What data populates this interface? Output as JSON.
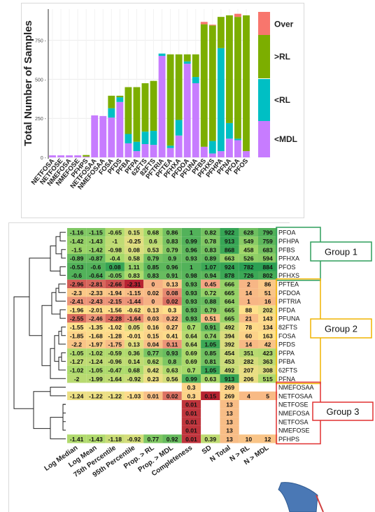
{
  "chart_data": [
    {
      "type": "bar",
      "stacked": true,
      "title": "",
      "ylabel": "Total Number of Samples",
      "xlabel": "",
      "ylim": [
        0,
        950
      ],
      "yticks": [
        0,
        250,
        500,
        750
      ],
      "ytick_labels": [
        "0 -",
        "250 -",
        "500 -",
        "750 -"
      ],
      "grid": true,
      "legend": "right",
      "categories": [
        "NETFOSA",
        "NETFOSE",
        "NMEFOSA",
        "NMEFOSE",
        "PFHPS",
        "NETFOSAA",
        "NMEFOSAA",
        "FOSA",
        "PFDS",
        "PFBA",
        "PFPA",
        "62FTS",
        "82FTS",
        "PFTRIA",
        "PFTEA",
        "PFHXA",
        "PFDOA",
        "PFUNA",
        "PFBS",
        "PFHXS",
        "PFHPA",
        "PFNA",
        "PFOA",
        "PFOS"
      ],
      "series": [
        {
          "name": "<MDL",
          "color": "#c77cff",
          "values": [
            13,
            13,
            13,
            13,
            5,
            269,
            265,
            255,
            355,
            90,
            40,
            85,
            80,
            650,
            60,
            140,
            600,
            475,
            68,
            25,
            40,
            120,
            110,
            40
          ]
        },
        {
          "name": "<RL",
          "color": "#00bfc4",
          "values": [
            0,
            0,
            0,
            0,
            0,
            0,
            0,
            60,
            30,
            60,
            60,
            80,
            90,
            15,
            15,
            100,
            15,
            40,
            0,
            80,
            660,
            100,
            10,
            0
          ]
        },
        {
          "name": ">RL",
          "color": "#7cae00",
          "values": [
            0,
            0,
            0,
            0,
            10,
            0,
            0,
            80,
            10,
            300,
            350,
            310,
            320,
            0,
            585,
            420,
            45,
            145,
            785,
            740,
            200,
            690,
            780,
            870
          ]
        },
        {
          "name": "Over",
          "color": "#f8766d",
          "values": [
            0,
            0,
            0,
            0,
            0,
            0,
            0,
            0,
            0,
            0,
            0,
            0,
            0,
            0,
            0,
            0,
            0,
            0,
            15,
            5,
            0,
            0,
            20,
            0
          ]
        }
      ]
    },
    {
      "type": "heatmap",
      "title": "",
      "columns": [
        "Log Median",
        "Log Mean",
        "75th Percentile",
        "95th Percentile",
        "Prop. > RL",
        "Prop. > MDL",
        "Completeness",
        "SD",
        "N Total",
        "N > RL",
        "N > MDL"
      ],
      "rows": [
        {
          "name": "PFOA",
          "values": [
            "-1.16",
            "-1.15",
            "-0.65",
            "0.15",
            "0.68",
            "0.86",
            "1",
            "0.82",
            "922",
            "628",
            "790"
          ],
          "shade": [
            0.82,
            0.82,
            0.72,
            0.62,
            0.75,
            0.84,
            0.9,
            0.84,
            0.95,
            0.85,
            0.9
          ]
        },
        {
          "name": "PFHPA",
          "values": [
            "-1.42",
            "-1.43",
            "-1",
            "-0.25",
            "0.6",
            "0.83",
            "0.99",
            "0.78",
            "913",
            "549",
            "759"
          ],
          "shade": [
            0.78,
            0.78,
            0.68,
            0.58,
            0.7,
            0.83,
            0.9,
            0.82,
            0.95,
            0.8,
            0.88
          ]
        },
        {
          "name": "PFBS",
          "values": [
            "-1.5",
            "-1.42",
            "-0.98",
            "0.08",
            "0.53",
            "0.79",
            "0.96",
            "0.83",
            "868",
            "458",
            "683"
          ],
          "shade": [
            0.77,
            0.78,
            0.68,
            0.6,
            0.66,
            0.81,
            0.88,
            0.84,
            0.94,
            0.76,
            0.84
          ]
        },
        {
          "name": "PFHXA",
          "values": [
            "-0.89",
            "-0.87",
            "-0.4",
            "0.58",
            "0.79",
            "0.9",
            "0.93",
            "0.89",
            "663",
            "526",
            "594"
          ],
          "shade": [
            0.86,
            0.86,
            0.75,
            0.67,
            0.84,
            0.86,
            0.87,
            0.87,
            0.78,
            0.79,
            0.8
          ]
        },
        {
          "name": "PFOS",
          "values": [
            "-0.53",
            "-0.6",
            "0.08",
            "1.11",
            "0.85",
            "0.96",
            "1",
            "1.07",
            "924",
            "782",
            "884"
          ],
          "shade": [
            0.9,
            0.9,
            0.95,
            0.78,
            0.88,
            0.88,
            0.9,
            0.94,
            0.95,
            0.97,
            0.97
          ]
        },
        {
          "name": "PFHXS",
          "values": [
            "-0.6",
            "-0.64",
            "-0.05",
            "0.83",
            "0.83",
            "0.91",
            "0.98",
            "0.94",
            "878",
            "726",
            "802"
          ],
          "shade": [
            0.9,
            0.9,
            0.82,
            0.73,
            0.86,
            0.86,
            0.89,
            0.88,
            0.94,
            0.94,
            0.92
          ]
        },
        {
          "name": "PFTEA",
          "values": [
            "-2.96",
            "-2.81",
            "-2.66",
            "-2.31",
            "0",
            "0.13",
            "0.93",
            "0.45",
            "666",
            "2",
            "86"
          ],
          "shade": [
            0.12,
            0.14,
            0.1,
            0.02,
            0.3,
            0.38,
            0.87,
            0.25,
            0.78,
            0.32,
            0.4
          ]
        },
        {
          "name": "PFDOA",
          "values": [
            "-2.3",
            "-2.33",
            "-1.94",
            "-1.15",
            "0.02",
            "0.08",
            "0.93",
            "0.72",
            "665",
            "14",
            "51"
          ],
          "shade": [
            0.4,
            0.4,
            0.38,
            0.35,
            0.34,
            0.2,
            0.87,
            0.78,
            0.78,
            0.34,
            0.38
          ]
        },
        {
          "name": "PFTRIA",
          "values": [
            "-2.41",
            "-2.43",
            "-2.15",
            "-1.44",
            "0",
            "0.02",
            "0.93",
            "0.88",
            "664",
            "1",
            "16"
          ],
          "shade": [
            0.22,
            0.22,
            0.22,
            0.22,
            0.3,
            0.16,
            0.87,
            0.86,
            0.78,
            0.32,
            0.34
          ]
        },
        {
          "name": "PFDA",
          "values": [
            "-1.96",
            "-2.01",
            "-1.56",
            "-0.62",
            "0.13",
            "0.3",
            "0.93",
            "0.79",
            "665",
            "88",
            "202"
          ],
          "shade": [
            0.5,
            0.48,
            0.48,
            0.52,
            0.45,
            0.5,
            0.87,
            0.82,
            0.78,
            0.5,
            0.55
          ]
        },
        {
          "name": "PFUNA",
          "values": [
            "-2.55",
            "-2.46",
            "-2.28",
            "-1.64",
            "0.03",
            "0.22",
            "0.93",
            "0.51",
            "665",
            "21",
            "143"
          ],
          "shade": [
            0.15,
            0.22,
            0.15,
            0.2,
            0.35,
            0.3,
            0.87,
            0.35,
            0.78,
            0.35,
            0.48
          ]
        },
        {
          "name": "82FTS",
          "values": [
            "-1.55",
            "-1.35",
            "-1.02",
            "0.05",
            "0.16",
            "0.27",
            "0.7",
            "0.91",
            "492",
            "78",
            "134"
          ],
          "shade": [
            0.5,
            0.52,
            0.5,
            0.58,
            0.46,
            0.42,
            0.75,
            0.88,
            0.66,
            0.48,
            0.46
          ]
        },
        {
          "name": "FOSA",
          "values": [
            "-1.85",
            "-1.68",
            "-1.28",
            "-0.01",
            "0.15",
            "0.41",
            "0.64",
            "0.74",
            "394",
            "60",
            "163"
          ],
          "shade": [
            0.45,
            0.48,
            0.47,
            0.5,
            0.45,
            0.48,
            0.7,
            0.79,
            0.6,
            0.44,
            0.5
          ]
        },
        {
          "name": "PFDS",
          "values": [
            "-2.2",
            "-1.97",
            "-1.75",
            "0.13",
            "0.04",
            "0.11",
            "0.64",
            "1.05",
            "392",
            "14",
            "42"
          ],
          "shade": [
            0.38,
            0.42,
            0.35,
            0.58,
            0.36,
            0.22,
            0.7,
            0.94,
            0.6,
            0.34,
            0.38
          ]
        },
        {
          "name": "PFPA",
          "values": [
            "-1.05",
            "-1.02",
            "-0.59",
            "0.36",
            "0.77",
            "0.93",
            "0.69",
            "0.85",
            "454",
            "351",
            "423"
          ],
          "shade": [
            0.72,
            0.72,
            0.72,
            0.72,
            0.83,
            0.86,
            0.74,
            0.85,
            0.64,
            0.7,
            0.72
          ]
        },
        {
          "name": "PFBA",
          "values": [
            "-1.27",
            "-1.24",
            "-0.96",
            "0.14",
            "0.62",
            "0.8",
            "0.69",
            "0.81",
            "453",
            "282",
            "363"
          ],
          "shade": [
            0.68,
            0.68,
            0.68,
            0.68,
            0.72,
            0.82,
            0.74,
            0.84,
            0.64,
            0.62,
            0.68
          ]
        },
        {
          "name": "62FTS",
          "values": [
            "-1.02",
            "-1.05",
            "-0.47",
            "0.68",
            "0.42",
            "0.63",
            "0.7",
            "1.05",
            "492",
            "207",
            "308"
          ],
          "shade": [
            0.73,
            0.73,
            0.73,
            0.73,
            0.6,
            0.72,
            0.75,
            0.94,
            0.66,
            0.56,
            0.6
          ]
        },
        {
          "name": "PFNA",
          "values": [
            "-2",
            "-1.99",
            "-1.64",
            "-0.92",
            "0.23",
            "0.56",
            "0.99",
            "0.63",
            "913",
            "206",
            "515"
          ],
          "shade": [
            0.7,
            0.7,
            0.68,
            0.65,
            0.55,
            0.62,
            0.9,
            0.74,
            0.95,
            0.56,
            0.72
          ]
        },
        {
          "name": "NMEFOSAA",
          "values": [
            "",
            "",
            "",
            "",
            "",
            "",
            "0.3",
            "",
            "269",
            "",
            ""
          ],
          "shade": [
            null,
            null,
            null,
            null,
            null,
            null,
            0.45,
            null,
            0.45,
            null,
            null
          ]
        },
        {
          "name": "NETFOSAA",
          "values": [
            "-1.24",
            "-1.22",
            "-1.22",
            "-1.03",
            "0.01",
            "0.02",
            "0.3",
            "0.15",
            "269",
            "4",
            "5"
          ],
          "shade": [
            0.55,
            0.55,
            0.55,
            0.48,
            0.36,
            0.16,
            0.45,
            0.02,
            0.45,
            0.34,
            0.34
          ]
        },
        {
          "name": "NETFOSE",
          "values": [
            "",
            "",
            "",
            "",
            "",
            "",
            "0.01",
            "",
            "13",
            "",
            ""
          ],
          "shade": [
            null,
            null,
            null,
            null,
            null,
            null,
            0.05,
            null,
            0.35,
            null,
            null
          ]
        },
        {
          "name": "NMEFOSA",
          "values": [
            "",
            "",
            "",
            "",
            "",
            "",
            "0.01",
            "",
            "13",
            "",
            ""
          ],
          "shade": [
            null,
            null,
            null,
            null,
            null,
            null,
            0.05,
            null,
            0.35,
            null,
            null
          ]
        },
        {
          "name": "NETFOSA",
          "values": [
            "",
            "",
            "",
            "",
            "",
            "",
            "0.01",
            "",
            "13",
            "",
            ""
          ],
          "shade": [
            null,
            null,
            null,
            null,
            null,
            null,
            0.05,
            null,
            0.35,
            null,
            null
          ]
        },
        {
          "name": "NMEFOSE",
          "values": [
            "",
            "",
            "",
            "",
            "",
            "",
            "0.01",
            "",
            "13",
            "",
            ""
          ],
          "shade": [
            null,
            null,
            null,
            null,
            null,
            null,
            0.05,
            null,
            0.35,
            null,
            null
          ]
        },
        {
          "name": "PFHPS",
          "values": [
            "-1.41",
            "-1.43",
            "-1.18",
            "-0.92",
            "0.77",
            "0.92",
            "0.01",
            "0.39",
            "13",
            "10",
            "12"
          ],
          "shade": [
            0.72,
            0.72,
            0.65,
            0.62,
            0.82,
            0.86,
            0.05,
            0.68,
            0.35,
            0.38,
            0.38
          ]
        }
      ],
      "groups": [
        {
          "label": "Group 1",
          "color": "#2e9e5b",
          "first": 0,
          "last": 5
        },
        {
          "label": "Group 2",
          "color": "#f0b400",
          "first": 6,
          "last": 17
        },
        {
          "label": "Group 3",
          "color": "#e03030",
          "first": 18,
          "last": 24
        }
      ],
      "colors": {
        "low": "#b2182b",
        "mid_low": "#f4a582",
        "mid": "#fee08b",
        "mid_high": "#a6d96a",
        "high": "#1a9850"
      }
    }
  ]
}
